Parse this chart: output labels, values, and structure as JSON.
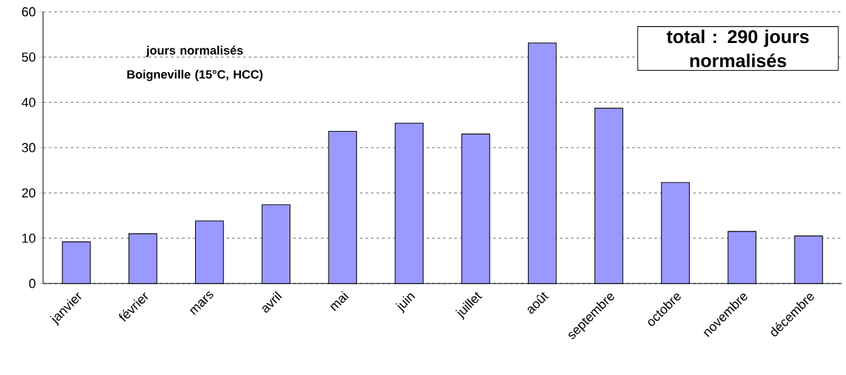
{
  "chart_data": {
    "type": "bar",
    "title": "jours normalisés Boigneville (15°C, HCC)",
    "categories": [
      "janvier",
      "février",
      "mars",
      "avril",
      "mai",
      "juin",
      "juillet",
      "août",
      "septembre",
      "octobre",
      "novembre",
      "décembre"
    ],
    "values": [
      9.2,
      11.0,
      13.8,
      17.4,
      33.6,
      35.4,
      33.0,
      53.1,
      38.7,
      22.3,
      11.5,
      10.5
    ],
    "color": "#9999ff",
    "ylim": [
      0,
      60
    ],
    "yticks": [
      0,
      10,
      20,
      30,
      40,
      50,
      60
    ],
    "grid": "y",
    "annotations": [
      "total : 290 jours normalisés"
    ]
  }
}
